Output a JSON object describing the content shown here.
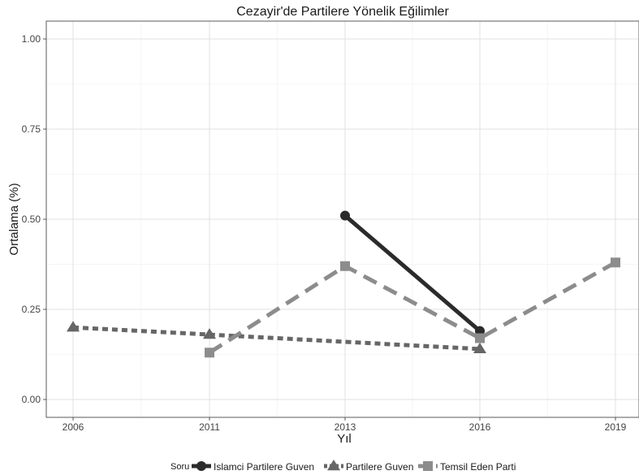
{
  "chart_data": {
    "type": "line",
    "title": "Cezayir'de Partilere Yönelik Eğilimler",
    "xlabel": "Yıl",
    "ylabel": "Ortalama (%)",
    "categories": [
      "2006",
      "2011",
      "2013",
      "2016",
      "2019"
    ],
    "ylim": [
      0,
      1
    ],
    "yticks": [
      "0.00",
      "0.25",
      "0.50",
      "0.75",
      "1.00"
    ],
    "grid": true,
    "legend_title": "Soru",
    "legend_position": "bottom",
    "series": [
      {
        "name": "Islamci Partilere Guven",
        "marker": "circle",
        "line": "solid",
        "color": "#2b2b2b",
        "points": [
          {
            "x": "2013",
            "y": 0.51
          },
          {
            "x": "2016",
            "y": 0.19
          }
        ]
      },
      {
        "name": "Partilere Guven",
        "marker": "triangle",
        "line": "dotted",
        "color": "#666666",
        "points": [
          {
            "x": "2006",
            "y": 0.2
          },
          {
            "x": "2011",
            "y": 0.18
          },
          {
            "x": "2016",
            "y": 0.14
          }
        ]
      },
      {
        "name": "Temsil Eden Parti",
        "marker": "square",
        "line": "dashed",
        "color": "#8c8c8c",
        "points": [
          {
            "x": "2011",
            "y": 0.13
          },
          {
            "x": "2013",
            "y": 0.37
          },
          {
            "x": "2016",
            "y": 0.17
          },
          {
            "x": "2019",
            "y": 0.38
          }
        ]
      }
    ]
  }
}
